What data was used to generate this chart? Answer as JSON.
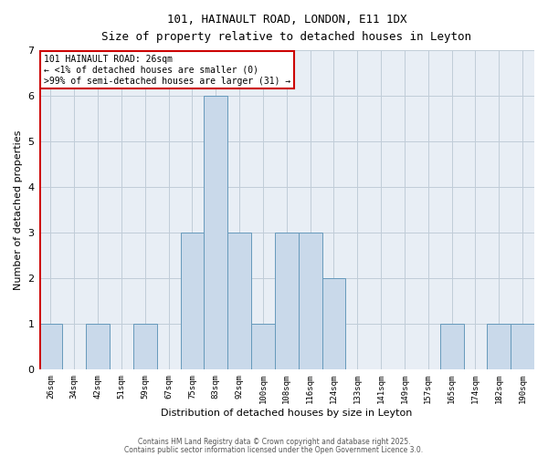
{
  "title1": "101, HAINAULT ROAD, LONDON, E11 1DX",
  "title2": "Size of property relative to detached houses in Leyton",
  "xlabel": "Distribution of detached houses by size in Leyton",
  "ylabel": "Number of detached properties",
  "categories": [
    "26sqm",
    "34sqm",
    "42sqm",
    "51sqm",
    "59sqm",
    "67sqm",
    "75sqm",
    "83sqm",
    "92sqm",
    "100sqm",
    "108sqm",
    "116sqm",
    "124sqm",
    "133sqm",
    "141sqm",
    "149sqm",
    "157sqm",
    "165sqm",
    "174sqm",
    "182sqm",
    "190sqm"
  ],
  "values": [
    1,
    0,
    1,
    0,
    1,
    0,
    3,
    6,
    3,
    1,
    3,
    3,
    2,
    0,
    0,
    0,
    0,
    1,
    0,
    1,
    1
  ],
  "bar_color": "#c9d9ea",
  "bar_edge_color": "#6699bb",
  "highlight_color": "#cc0000",
  "annotation_text": "101 HAINAULT ROAD: 26sqm\n← <1% of detached houses are smaller (0)\n>99% of semi-detached houses are larger (31) →",
  "footer1": "Contains HM Land Registry data © Crown copyright and database right 2025.",
  "footer2": "Contains public sector information licensed under the Open Government Licence 3.0.",
  "ylim": [
    0,
    7
  ],
  "yticks": [
    0,
    1,
    2,
    3,
    4,
    5,
    6,
    7
  ],
  "bg_color": "#ffffff",
  "axes_bg_color": "#e8eef5",
  "grid_color": "#c0ccd8",
  "annotation_box_color": "#ffffff",
  "annotation_box_edge_color": "#cc0000"
}
